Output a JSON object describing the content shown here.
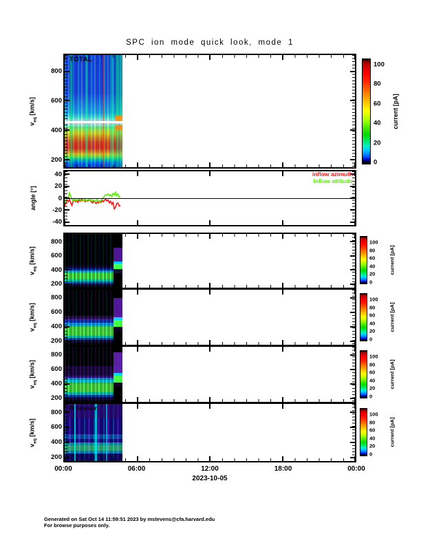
{
  "title": "SPC ion mode quick look, mode 1",
  "xaxis": {
    "ticks": [
      "00:00",
      "06:00",
      "12:00",
      "18:00",
      "00:00"
    ],
    "tick_hours": [
      0,
      6,
      12,
      18,
      24
    ],
    "span_hours": 24,
    "date_label": "2023-10-05"
  },
  "colorbar": {
    "ticks": [
      0,
      20,
      40,
      60,
      80,
      100
    ],
    "label": "current [pA]"
  },
  "panels": [
    {
      "id": "total",
      "label": "TOTAL",
      "ylabel_pre": "v",
      "ylabel_sub": "eq",
      "ylabel_post": " [km/s]",
      "yticks": [
        200,
        400,
        600,
        800
      ],
      "yrange": [
        150,
        910
      ]
    },
    {
      "id": "angle",
      "label": "",
      "ylabel_pre": "angle [°]",
      "ylabel_sub": "",
      "ylabel_post": "",
      "yticks": [
        -40,
        -20,
        0,
        20,
        40
      ],
      "yrange": [
        -45,
        45
      ]
    },
    {
      "id": "a",
      "label": "",
      "ylabel_pre": "v",
      "ylabel_sub": "eq",
      "ylabel_post": " [km/s]",
      "yticks": [
        200,
        400,
        600,
        800
      ],
      "yrange": [
        150,
        910
      ]
    },
    {
      "id": "b",
      "label": "",
      "ylabel_pre": "v",
      "ylabel_sub": "eq",
      "ylabel_post": " [km/s]",
      "yticks": [
        200,
        400,
        600,
        800
      ],
      "yrange": [
        150,
        910
      ]
    },
    {
      "id": "c",
      "label": "",
      "ylabel_pre": "v",
      "ylabel_sub": "eq",
      "ylabel_post": " [km/s]",
      "yticks": [
        200,
        400,
        600,
        800
      ],
      "yrange": [
        150,
        910
      ]
    },
    {
      "id": "d",
      "label": "D sensor",
      "ylabel_pre": "v",
      "ylabel_sub": "eq",
      "ylabel_post": " [km/s]",
      "yticks": [
        200,
        400,
        600,
        800
      ],
      "yrange": [
        150,
        910
      ]
    }
  ],
  "legend": {
    "items": [
      {
        "label": "inflow azimuth",
        "color": "#ff1010"
      },
      {
        "label": "inflow attitude",
        "color": "#55ee00"
      }
    ]
  },
  "footer": {
    "line1": "Generated on Sat Oct 14 11:59:51 2023 by mstevens@cfa.harvard.edu",
    "line2": "For browse purposes only."
  },
  "chart_data": [
    {
      "panel": "total",
      "type": "heatmap",
      "title": "TOTAL",
      "xlim_hours": [
        0,
        24
      ],
      "data_coverage_hours": [
        0,
        4.7
      ],
      "ylabel": "veq [km/s]",
      "ylim_kms": [
        150,
        910
      ],
      "value_label": "current [pA]",
      "value_range": [
        0,
        100
      ],
      "features": {
        "background_level_pA": [
          0,
          15
        ],
        "proton_beam_kms": [
          230,
          420
        ],
        "beam_peak_pA": [
          60,
          100
        ],
        "white_gap_line_kms": 460,
        "pale_band_kms": [
          420,
          500
        ],
        "streaked_halo_kms": [
          500,
          900
        ],
        "halo_level_pA": [
          5,
          30
        ]
      }
    },
    {
      "panel": "angle",
      "type": "line",
      "ylabel": "angle [°]",
      "ylim_deg": [
        -45,
        45
      ],
      "xlim_hours": [
        0,
        24
      ],
      "zero_line": true,
      "series": [
        {
          "name": "inflow azimuth",
          "color": "#ff1010",
          "x_start_hours": 0,
          "x_step_hours": 0.1,
          "y_deg": [
            -13,
            -8,
            -3,
            -6,
            -2,
            -8,
            -12,
            -5,
            -3,
            -6,
            -4,
            -7,
            -3,
            -5,
            -2,
            -4,
            -3,
            -6,
            -4,
            -5,
            -3,
            -4,
            -6,
            -8,
            -5,
            -7,
            -9,
            -6,
            -8,
            -5,
            -7,
            -4,
            -6,
            -3,
            -2,
            -5,
            -3,
            -8,
            -5,
            -10,
            -7,
            -18,
            -15,
            -9,
            -8,
            -13,
            -12
          ]
        },
        {
          "name": "inflow attitude",
          "color": "#55ee00",
          "x_start_hours": 0,
          "x_step_hours": 0.1,
          "y_deg": [
            -8,
            -4,
            -2,
            2,
            9,
            3,
            -2,
            -4,
            -1,
            -5,
            -2,
            -4,
            -1,
            -3,
            -5,
            -2,
            -4,
            -2,
            -5,
            -3,
            -2,
            -4,
            -2,
            -5,
            -3,
            -6,
            -4,
            -2,
            -5,
            -7,
            -4,
            -2,
            1,
            4,
            6,
            5,
            7,
            4,
            6,
            3,
            8,
            5,
            10,
            4,
            7,
            2,
            3
          ]
        }
      ]
    },
    {
      "panel": "a",
      "type": "heatmap",
      "xlim_hours": [
        0,
        24
      ],
      "data_coverage_hours": [
        0,
        4.7
      ],
      "ylim_kms": [
        150,
        910
      ],
      "value_label": "current [pA]",
      "value_range": [
        0,
        100
      ],
      "features": {
        "background": "black below threshold",
        "beam_kms": [
          230,
          420
        ],
        "beam_peak_pA": [
          20,
          60
        ],
        "end_rise_kms": [
          450,
          700
        ]
      }
    },
    {
      "panel": "b",
      "type": "heatmap",
      "xlim_hours": [
        0,
        24
      ],
      "data_coverage_hours": [
        0,
        4.7
      ],
      "ylim_kms": [
        150,
        910
      ],
      "value_label": "current [pA]",
      "value_range": [
        0,
        100
      ],
      "features": {
        "background": "black below threshold",
        "beam_kms": [
          230,
          420
        ],
        "beam_peak_pA": [
          20,
          60
        ],
        "horizontal_stripe_kms": [
          420,
          505
        ],
        "end_rise_kms": [
          450,
          800
        ]
      }
    },
    {
      "panel": "c",
      "type": "heatmap",
      "xlim_hours": [
        0,
        24
      ],
      "data_coverage_hours": [
        0,
        4.7
      ],
      "ylim_kms": [
        150,
        910
      ],
      "value_label": "current [pA]",
      "value_range": [
        0,
        100
      ],
      "features": {
        "background": "black with purple haze 450-700 km/s",
        "beam_kms": [
          230,
          420
        ],
        "beam_peak_pA": [
          20,
          60
        ],
        "horizontal_stripe_kms": [
          430,
          500
        ],
        "end_rise_kms": [
          450,
          800
        ]
      }
    },
    {
      "panel": "d",
      "type": "heatmap",
      "title": "D sensor",
      "xlim_hours": [
        0,
        24
      ],
      "data_coverage_hours": [
        0,
        4.7
      ],
      "ylim_kms": [
        150,
        910
      ],
      "value_label": "current [pA]",
      "value_range": [
        0,
        100
      ],
      "features": {
        "background": "blue-purple noise 0-15 pA with bright cyan vertical streaks",
        "beam_kms": [
          230,
          350
        ],
        "beam_peak_pA": [
          20,
          50
        ],
        "cyan_patch_kms": [
          430,
          520
        ]
      }
    }
  ]
}
